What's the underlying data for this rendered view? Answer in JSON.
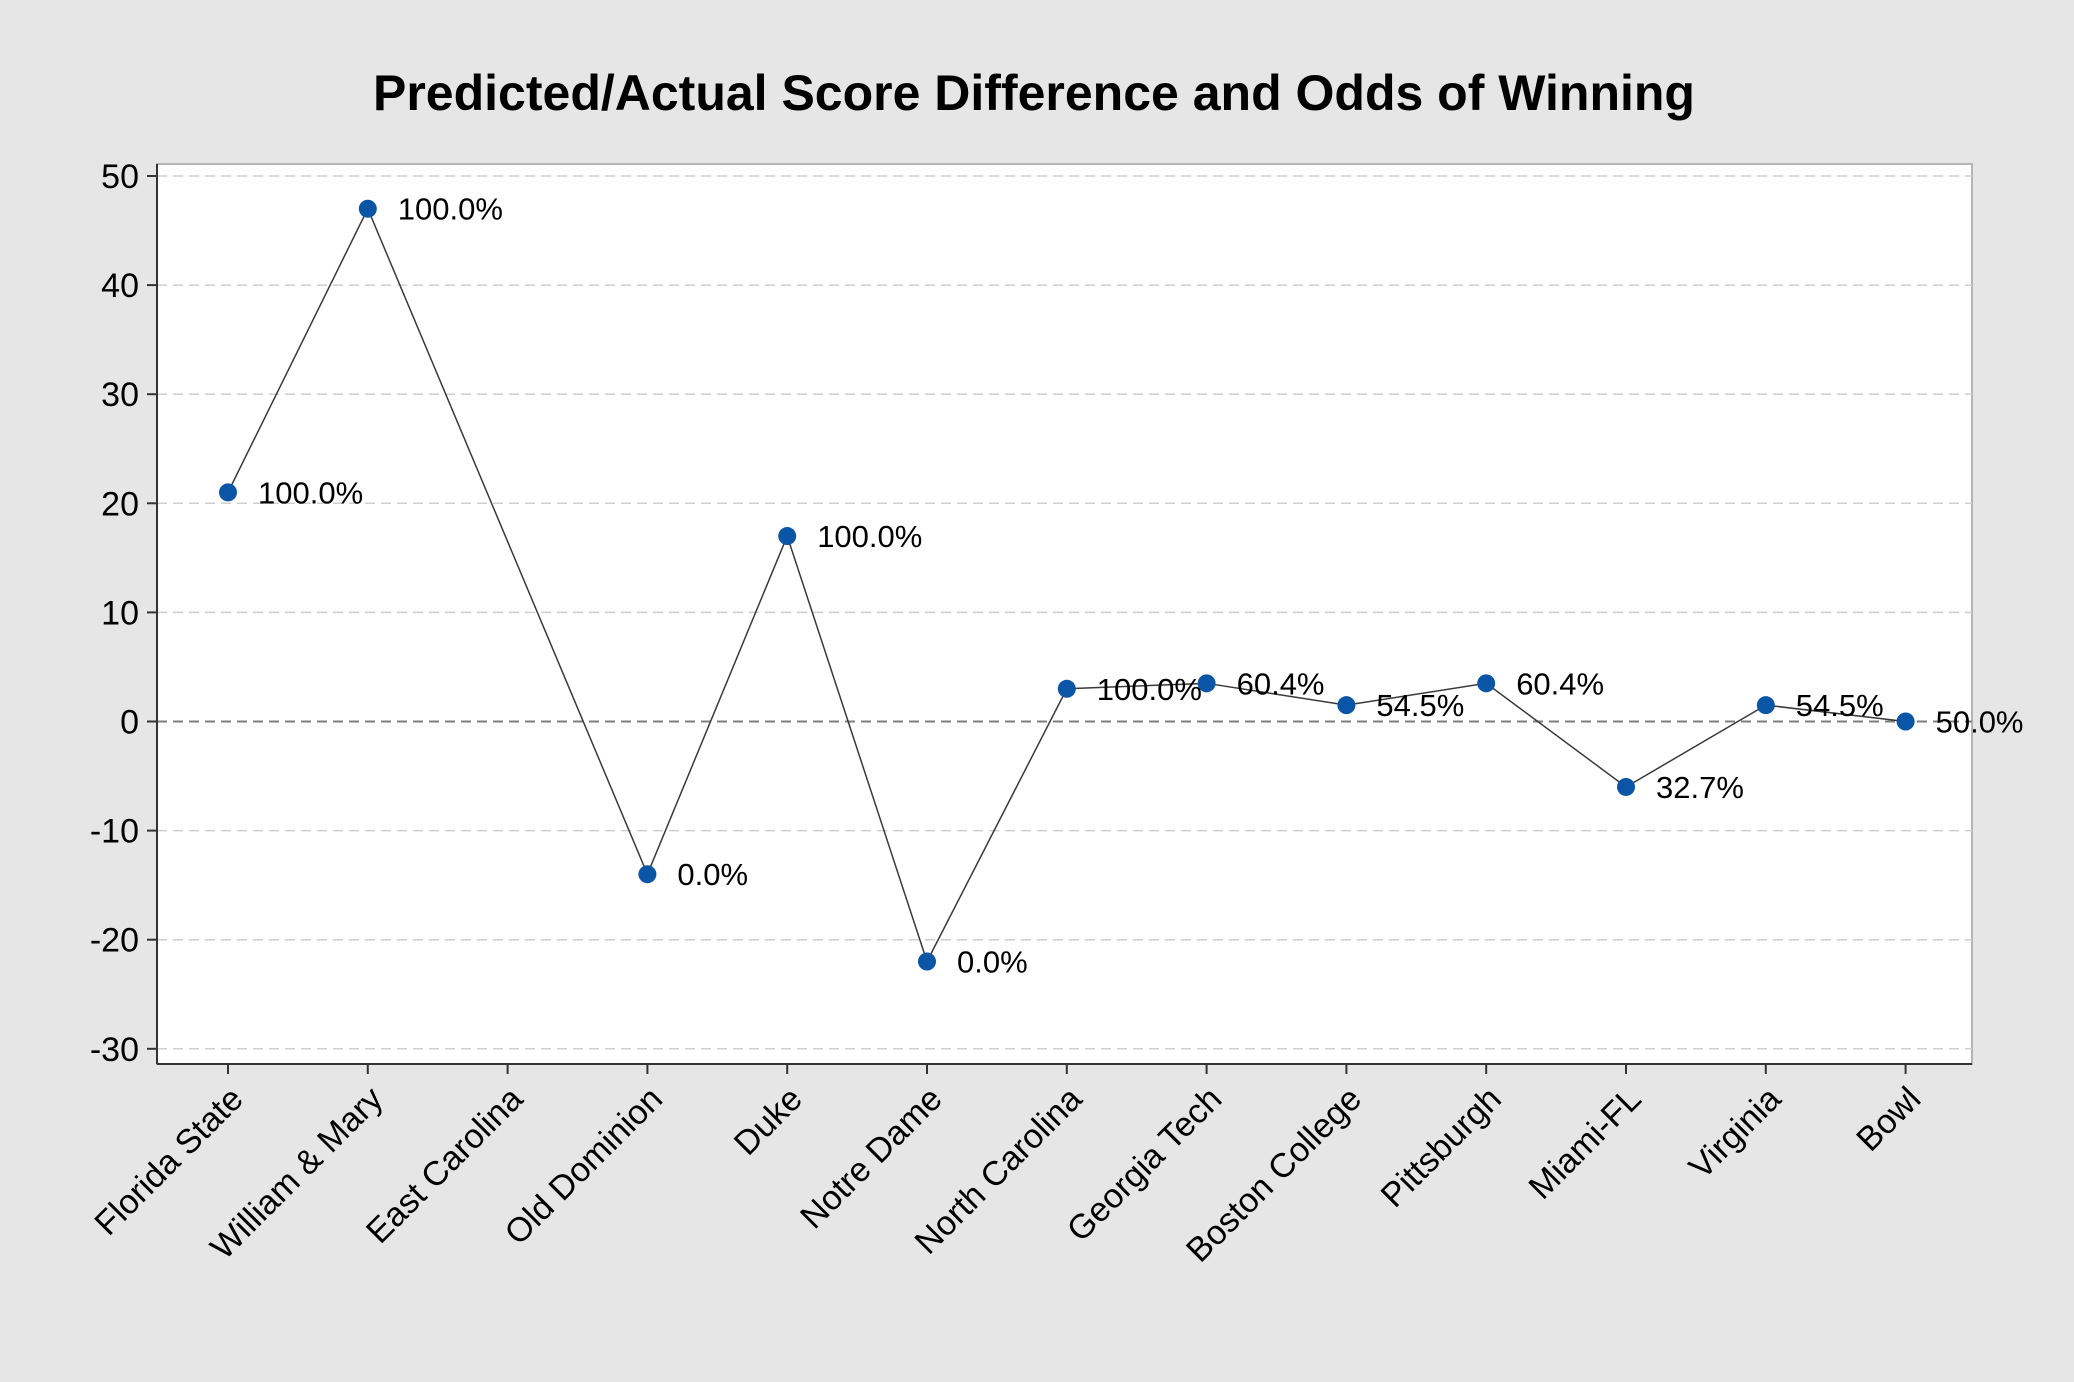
{
  "chart_data": {
    "type": "line",
    "title": "Predicted/Actual Score Difference and Odds of Winning",
    "xlabel": "",
    "ylabel": "",
    "ylim": [
      -32,
      51
    ],
    "yticks": [
      50,
      40,
      30,
      20,
      10,
      0,
      -10,
      -20,
      -30
    ],
    "ytick_labels": [
      "50",
      "40",
      "30",
      "20",
      "10",
      "0",
      "-10",
      "-20",
      "-30"
    ],
    "grid": true,
    "legend": "none",
    "categories": [
      "Florida State",
      "William & Mary",
      "East Carolina",
      "Old Dominion",
      "Duke",
      "Notre Dame",
      "North Carolina",
      "Georgia Tech",
      "Boston College",
      "Pittsburgh",
      "Miami-FL",
      "Virginia",
      "Bowl"
    ],
    "series": [
      {
        "values": [
          21,
          47,
          null,
          -14,
          17,
          -22,
          3,
          3.5,
          1.5,
          3.5,
          -6,
          1.5,
          0
        ],
        "labels": [
          "100.0%",
          "100.0%",
          null,
          "0.0%",
          "100.0%",
          "0.0%",
          "100.0%",
          "60.4%",
          "54.5%",
          "60.4%",
          "32.7%",
          "54.5%",
          "50.0%"
        ]
      }
    ],
    "colors": {
      "marker": "#0a55a5",
      "line": "#3a3a3a",
      "grid": "#cfcfcf",
      "zero_line": "#7f7f7f"
    }
  }
}
